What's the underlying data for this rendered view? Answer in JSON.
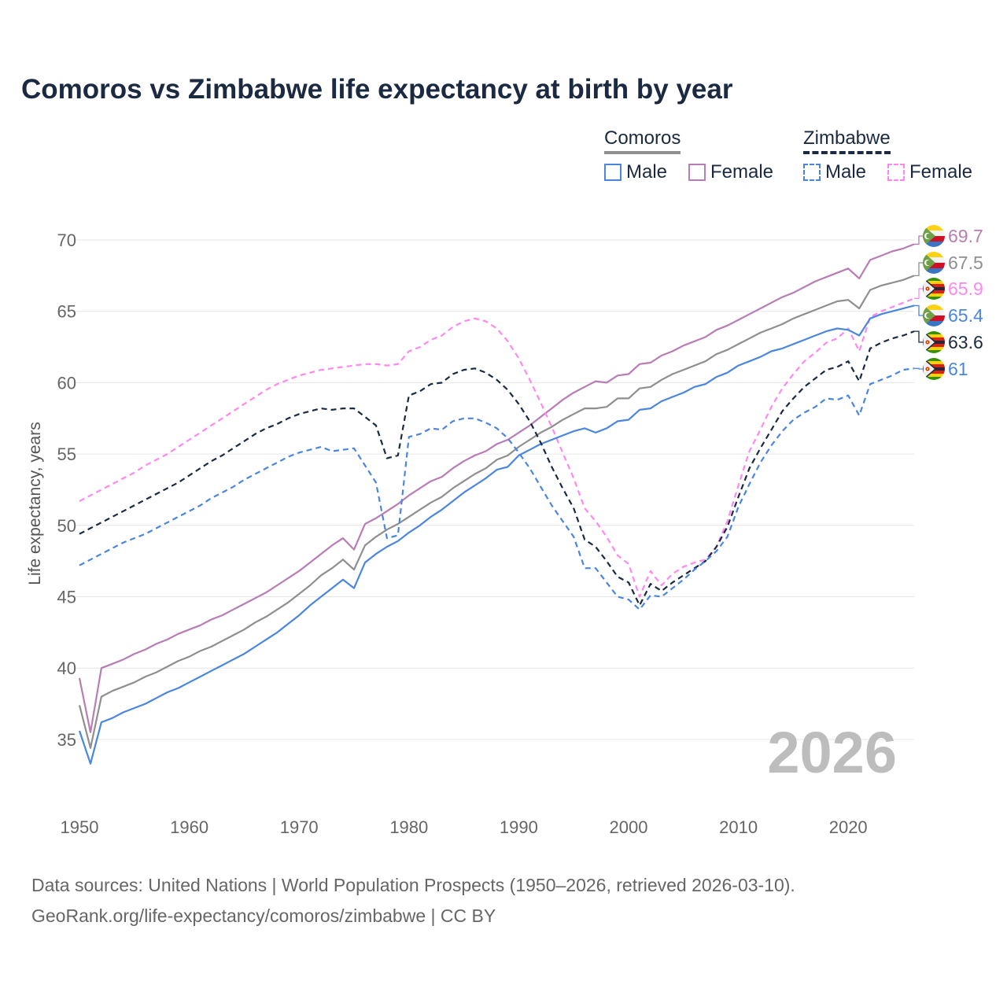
{
  "chart_data": {
    "type": "line",
    "title": "Comoros vs Zimbabwe life expectancy at birth by year",
    "xlabel": "",
    "ylabel": "Life expectancy, years",
    "xlim": [
      1950,
      2026
    ],
    "ylim": [
      32.5,
      72
    ],
    "x_ticks": [
      1950,
      1960,
      1970,
      1980,
      1990,
      2000,
      2010,
      2020
    ],
    "y_ticks": [
      35,
      40,
      45,
      50,
      55,
      60,
      65,
      70
    ],
    "grid": true,
    "watermark_year": "2026",
    "x_start": 1950,
    "series": [
      {
        "name": "Comoros Female",
        "country": "Comoros",
        "sex": "Female",
        "color": "#b87db5",
        "dash": false,
        "end_label": "69.7",
        "flag": "comoros",
        "values": [
          39.3,
          35.5,
          40.0,
          40.3,
          40.6,
          41.0,
          41.3,
          41.7,
          42.0,
          42.4,
          42.7,
          43.0,
          43.4,
          43.7,
          44.1,
          44.5,
          44.9,
          45.3,
          45.8,
          46.3,
          46.8,
          47.4,
          48.0,
          48.6,
          49.1,
          48.3,
          50.1,
          50.5,
          51.0,
          51.5,
          52.1,
          52.6,
          53.1,
          53.4,
          54.0,
          54.5,
          54.9,
          55.2,
          55.7,
          56.0,
          56.5,
          57.0,
          57.6,
          58.2,
          58.8,
          59.3,
          59.7,
          60.1,
          60.0,
          60.5,
          60.6,
          61.3,
          61.4,
          61.9,
          62.2,
          62.6,
          62.9,
          63.2,
          63.7,
          64.0,
          64.4,
          64.8,
          65.2,
          65.6,
          66.0,
          66.3,
          66.7,
          67.1,
          67.4,
          67.7,
          68.0,
          67.3,
          68.6,
          68.9,
          69.2,
          69.4,
          69.7
        ]
      },
      {
        "name": "Comoros",
        "country": "Comoros",
        "sex": "Both",
        "color": "#8f8f8f",
        "dash": false,
        "end_label": "67.5",
        "flag": "comoros",
        "values": [
          37.4,
          34.4,
          38.0,
          38.4,
          38.7,
          39.0,
          39.4,
          39.7,
          40.1,
          40.5,
          40.8,
          41.2,
          41.5,
          41.9,
          42.3,
          42.7,
          43.2,
          43.6,
          44.1,
          44.6,
          45.2,
          45.8,
          46.5,
          47.0,
          47.6,
          46.9,
          48.6,
          49.2,
          49.7,
          50.1,
          50.6,
          51.1,
          51.6,
          52.0,
          52.6,
          53.1,
          53.6,
          54.0,
          54.6,
          54.9,
          55.5,
          56.0,
          56.5,
          56.9,
          57.4,
          57.8,
          58.2,
          58.2,
          58.3,
          58.9,
          58.9,
          59.6,
          59.7,
          60.2,
          60.6,
          60.9,
          61.2,
          61.5,
          62.0,
          62.3,
          62.7,
          63.1,
          63.5,
          63.8,
          64.1,
          64.5,
          64.8,
          65.1,
          65.4,
          65.7,
          65.8,
          65.2,
          66.5,
          66.8,
          67.0,
          67.2,
          67.5
        ]
      },
      {
        "name": "Zimbabwe Female",
        "country": "Zimbabwe",
        "sex": "Female",
        "color": "#ff88f0",
        "dash": true,
        "end_label": "65.9",
        "flag": "zimbabwe",
        "values": [
          51.7,
          52.1,
          52.5,
          52.9,
          53.3,
          53.7,
          54.2,
          54.6,
          55.0,
          55.5,
          56.0,
          56.5,
          57.0,
          57.5,
          58.0,
          58.5,
          59.0,
          59.5,
          59.9,
          60.2,
          60.5,
          60.7,
          60.9,
          61.0,
          61.1,
          61.2,
          61.3,
          61.3,
          61.2,
          61.3,
          62.2,
          62.5,
          63.0,
          63.3,
          63.9,
          64.3,
          64.5,
          64.3,
          63.8,
          62.9,
          61.7,
          60.2,
          58.6,
          56.9,
          55.1,
          53.3,
          51.2,
          50.3,
          49.2,
          47.9,
          47.3,
          45.0,
          46.8,
          45.8,
          46.6,
          47.1,
          47.4,
          47.6,
          48.5,
          50.3,
          52.8,
          55.2,
          56.7,
          58.3,
          59.6,
          60.6,
          61.5,
          62.1,
          62.8,
          63.1,
          63.8,
          62.2,
          64.6,
          65.0,
          65.3,
          65.6,
          65.9
        ]
      },
      {
        "name": "Comoros Male",
        "country": "Comoros",
        "sex": "Male",
        "color": "#4a86e0",
        "dash": false,
        "end_label": "65.4",
        "flag": "comoros",
        "values": [
          35.6,
          33.3,
          36.2,
          36.5,
          36.9,
          37.2,
          37.5,
          37.9,
          38.3,
          38.6,
          39.0,
          39.4,
          39.8,
          40.2,
          40.6,
          41.0,
          41.5,
          42.0,
          42.5,
          43.1,
          43.7,
          44.4,
          45.0,
          45.6,
          46.2,
          45.6,
          47.4,
          48.0,
          48.5,
          48.9,
          49.5,
          50.0,
          50.6,
          51.1,
          51.7,
          52.3,
          52.8,
          53.3,
          53.9,
          54.1,
          54.9,
          55.3,
          55.7,
          56.0,
          56.3,
          56.6,
          56.8,
          56.5,
          56.8,
          57.3,
          57.4,
          58.1,
          58.2,
          58.7,
          59.0,
          59.3,
          59.7,
          59.9,
          60.4,
          60.7,
          61.2,
          61.5,
          61.8,
          62.2,
          62.4,
          62.7,
          63.0,
          63.3,
          63.6,
          63.8,
          63.7,
          63.3,
          64.5,
          64.8,
          65.0,
          65.2,
          65.4
        ]
      },
      {
        "name": "Zimbabwe",
        "country": "Zimbabwe",
        "sex": "Both",
        "color": "#1b2a41",
        "dash": true,
        "end_label": "63.6",
        "flag": "zimbabwe",
        "values": [
          49.4,
          49.8,
          50.2,
          50.6,
          51.0,
          51.4,
          51.8,
          52.2,
          52.6,
          53.0,
          53.5,
          54.0,
          54.5,
          54.9,
          55.4,
          55.9,
          56.4,
          56.8,
          57.1,
          57.5,
          57.8,
          58.0,
          58.2,
          58.1,
          58.2,
          58.2,
          57.6,
          57.0,
          54.7,
          54.9,
          59.1,
          59.4,
          59.9,
          60.0,
          60.6,
          60.9,
          61.0,
          60.7,
          60.2,
          59.5,
          58.5,
          57.3,
          55.8,
          54.1,
          52.6,
          51.2,
          49.0,
          48.5,
          47.5,
          46.4,
          46.0,
          44.4,
          45.9,
          45.4,
          46.0,
          46.5,
          47.0,
          47.5,
          48.5,
          49.9,
          52.0,
          54.0,
          55.4,
          56.7,
          58.0,
          58.9,
          59.7,
          60.3,
          60.9,
          61.1,
          61.5,
          60.1,
          62.4,
          62.8,
          63.1,
          63.3,
          63.6
        ]
      },
      {
        "name": "Zimbabwe Male",
        "country": "Zimbabwe",
        "sex": "Male",
        "color": "#4a86e0",
        "dash": true,
        "end_label": "61",
        "flag": "zimbabwe",
        "values": [
          47.2,
          47.6,
          48.0,
          48.4,
          48.8,
          49.1,
          49.4,
          49.8,
          50.2,
          50.6,
          51.0,
          51.4,
          51.9,
          52.3,
          52.7,
          53.2,
          53.6,
          54.0,
          54.4,
          54.8,
          55.1,
          55.3,
          55.5,
          55.2,
          55.3,
          55.4,
          54.2,
          53.0,
          49.1,
          49.3,
          56.2,
          56.4,
          56.8,
          56.7,
          57.3,
          57.5,
          57.5,
          57.2,
          56.8,
          56.1,
          55.1,
          54.0,
          52.7,
          51.4,
          50.3,
          49.2,
          47.0,
          47.0,
          46.0,
          45.0,
          44.8,
          44.1,
          45.1,
          45.0,
          45.6,
          46.2,
          46.9,
          47.5,
          48.2,
          49.2,
          51.3,
          52.9,
          54.4,
          55.6,
          56.6,
          57.4,
          57.9,
          58.3,
          58.9,
          58.8,
          59.1,
          57.7,
          59.9,
          60.2,
          60.5,
          60.9,
          61.0
        ]
      }
    ]
  },
  "legend": {
    "comoros": "Comoros",
    "zimbabwe": "Zimbabwe",
    "male": "Male",
    "female": "Female"
  },
  "colors": {
    "comoros_male": "#4a86e0",
    "comoros_female": "#b87db5",
    "zimbabwe_male": "#4a86e0",
    "zimbabwe_female": "#ff88f0"
  },
  "footer": {
    "line1": "Data sources: United Nations | World Population Prospects (1950–2026, retrieved 2026-03-10).",
    "line2": "GeoRank.org/life-expectancy/comoros/zimbabwe | CC BY"
  }
}
